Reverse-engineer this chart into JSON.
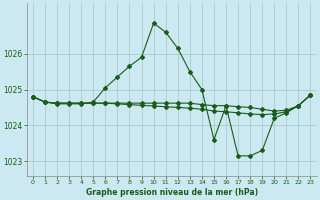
{
  "title": "Graphe pression niveau de la mer (hPa)",
  "bg_color": "#cce8f0",
  "grid_color": "#aacccc",
  "line_color": "#1a5c1a",
  "xlim": [
    -0.5,
    23.5
  ],
  "ylim": [
    1022.6,
    1027.4
  ],
  "yticks": [
    1023,
    1024,
    1025,
    1026
  ],
  "xticks": [
    0,
    1,
    2,
    3,
    4,
    5,
    6,
    7,
    8,
    9,
    10,
    11,
    12,
    13,
    14,
    15,
    16,
    17,
    18,
    19,
    20,
    21,
    22,
    23
  ],
  "series": [
    {
      "x": [
        0,
        1,
        2,
        3,
        4,
        5,
        6,
        7,
        8,
        9,
        10,
        11,
        12,
        13,
        14,
        15,
        16,
        17,
        18,
        19,
        20,
        21,
        22,
        23
      ],
      "y": [
        1024.8,
        1024.65,
        1024.6,
        1024.6,
        1024.6,
        1024.65,
        1025.05,
        1025.35,
        1025.65,
        1025.9,
        1026.85,
        1026.6,
        1026.15,
        1025.5,
        1025.0,
        1023.6,
        1024.55,
        1023.15,
        1023.15,
        1023.3,
        1024.2,
        1024.35,
        1024.55,
        1024.85
      ]
    },
    {
      "x": [
        0,
        1,
        2,
        3,
        4,
        5,
        6,
        7,
        8,
        9,
        10,
        11,
        12,
        13,
        14,
        15,
        16,
        17,
        18,
        19,
        20,
        21,
        22,
        23
      ],
      "y": [
        1024.8,
        1024.65,
        1024.62,
        1024.62,
        1024.62,
        1024.62,
        1024.62,
        1024.62,
        1024.62,
        1024.62,
        1024.62,
        1024.62,
        1024.62,
        1024.62,
        1024.58,
        1024.55,
        1024.55,
        1024.52,
        1024.5,
        1024.45,
        1024.4,
        1024.42,
        1024.55,
        1024.85
      ]
    },
    {
      "x": [
        0,
        1,
        2,
        3,
        4,
        5,
        6,
        7,
        8,
        9,
        10,
        11,
        12,
        13,
        14,
        15,
        16,
        17,
        18,
        19,
        20,
        21,
        22,
        23
      ],
      "y": [
        1024.8,
        1024.65,
        1024.62,
        1024.62,
        1024.62,
        1024.62,
        1024.62,
        1024.6,
        1024.58,
        1024.56,
        1024.54,
        1024.52,
        1024.5,
        1024.48,
        1024.45,
        1024.4,
        1024.38,
        1024.35,
        1024.32,
        1024.3,
        1024.32,
        1024.38,
        1024.55,
        1024.85
      ]
    }
  ]
}
